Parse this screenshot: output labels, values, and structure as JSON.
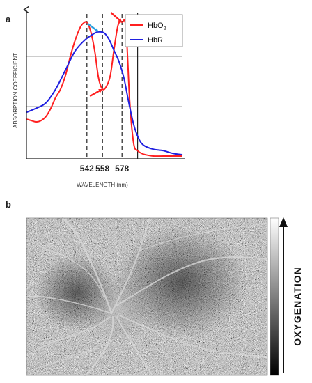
{
  "panels": {
    "a_label": "a",
    "b_label": "b"
  },
  "chart_data": {
    "type": "line",
    "xlabel": "WAVELENGTH (nm)",
    "ylabel": "ABSORPTION COEFFICIENT",
    "xlim": [
      480,
      640
    ],
    "ylim": [
      0,
      1
    ],
    "x_ticks": [
      542,
      558,
      578
    ],
    "x_tick_labels": [
      "542",
      "558",
      "578"
    ],
    "grid": false,
    "reference_hlines_relative": [
      0.24,
      0.69
    ],
    "reference_vline_x": 594,
    "legend_position": "top-right",
    "series": [
      {
        "name": "HbO",
        "name_subscript": "2",
        "color": "#ff2020",
        "x": [
          480,
          485,
          490,
          495,
          500,
          505,
          510,
          515,
          520,
          525,
          530,
          535,
          538,
          542,
          546,
          550,
          554,
          558,
          562,
          566,
          570,
          574,
          578,
          582,
          586,
          590,
          594,
          598,
          602,
          610,
          620,
          630,
          640
        ],
        "y": [
          0.28,
          0.27,
          0.26,
          0.27,
          0.3,
          0.36,
          0.44,
          0.5,
          0.6,
          0.74,
          0.86,
          0.95,
          0.98,
          0.99,
          0.92,
          0.78,
          0.58,
          0.5,
          0.52,
          0.6,
          0.8,
          0.97,
          0.99,
          0.95,
          0.4,
          0.1,
          0.05,
          0.03,
          0.02,
          0.01,
          0.01,
          0.01,
          0.01
        ]
      },
      {
        "name": "HbR",
        "color": "#2020e0",
        "x": [
          480,
          490,
          500,
          510,
          520,
          530,
          540,
          550,
          555,
          560,
          565,
          570,
          575,
          580,
          585,
          590,
          595,
          600,
          610,
          620,
          630,
          640
        ],
        "y": [
          0.33,
          0.36,
          0.4,
          0.5,
          0.64,
          0.78,
          0.86,
          0.91,
          0.92,
          0.91,
          0.86,
          0.78,
          0.7,
          0.58,
          0.4,
          0.24,
          0.14,
          0.09,
          0.06,
          0.05,
          0.03,
          0.02
        ]
      }
    ],
    "annotations": [
      {
        "kind": "arrow",
        "color": "#ff2020",
        "target_x": 578,
        "target_y": 0.99
      },
      {
        "kind": "arrow",
        "color": "#ff2020",
        "target_x": 558,
        "target_y": 0.5
      },
      {
        "kind": "arrow",
        "color": "#29a0e0",
        "target_x": 554,
        "target_y": 0.92
      }
    ]
  },
  "oxygenation_map": {
    "colorbar_label": "OXYGENATION",
    "colormap": [
      "#000000",
      "#ffffff"
    ],
    "colorbar_arrow_direction": "up"
  }
}
